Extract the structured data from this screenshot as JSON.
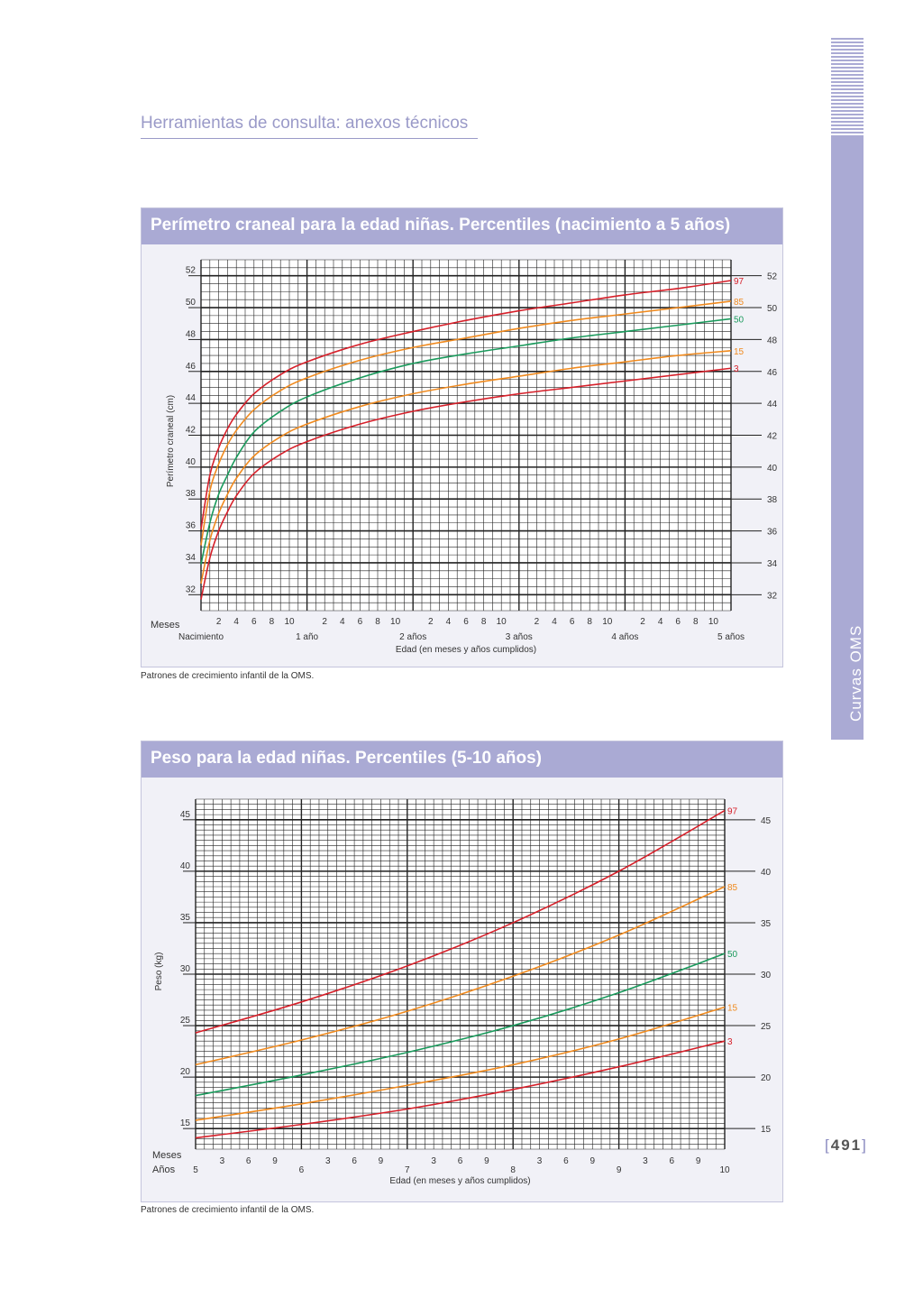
{
  "header": {
    "title": "Herramientas de consulta: anexos técnicos"
  },
  "side_tab": {
    "label": "Curvas OMS"
  },
  "page_number": {
    "value": "491",
    "open": "[",
    "close": "]"
  },
  "chart_data": [
    {
      "type": "line",
      "title": "Perímetro craneal para la edad niñas. Percentiles (nacimiento a 5 años)",
      "xlabel": "Edad (en meses y años cumplidos)",
      "ylabel": "Perímetro craneal (cm)",
      "x_unit": "months",
      "xlim": [
        0,
        60
      ],
      "ylim": [
        31,
        53
      ],
      "y_ticks": [
        32,
        34,
        36,
        38,
        40,
        42,
        44,
        46,
        48,
        50,
        52
      ],
      "month_row_label": "Meses",
      "month_ticks": [
        "2",
        "4",
        "6",
        "8",
        "10"
      ],
      "year_labels": [
        "Nacimiento",
        "1 año",
        "2 años",
        "3 años",
        "4 años",
        "5 años"
      ],
      "grid": true,
      "source": "Patrones de crecimiento infantil de la OMS.",
      "series": [
        {
          "name": "97",
          "color": "#d6202a",
          "x": [
            0,
            1,
            2,
            3,
            4,
            6,
            9,
            12,
            18,
            24,
            30,
            36,
            42,
            48,
            54,
            60
          ],
          "values": [
            36.1,
            39.5,
            41.2,
            42.4,
            43.3,
            44.6,
            45.8,
            46.6,
            47.7,
            48.5,
            49.2,
            49.8,
            50.3,
            50.8,
            51.2,
            51.7
          ]
        },
        {
          "name": "85",
          "color": "#f08a1e",
          "x": [
            0,
            1,
            2,
            3,
            4,
            6,
            9,
            12,
            18,
            24,
            30,
            36,
            42,
            48,
            54,
            60
          ],
          "values": [
            35.1,
            38.5,
            40.2,
            41.4,
            42.3,
            43.6,
            44.8,
            45.6,
            46.7,
            47.5,
            48.1,
            48.7,
            49.2,
            49.6,
            50.0,
            50.4
          ]
        },
        {
          "name": "50",
          "color": "#1a9a5c",
          "x": [
            0,
            1,
            2,
            3,
            4,
            6,
            9,
            12,
            18,
            24,
            30,
            36,
            42,
            48,
            54,
            60
          ],
          "values": [
            33.9,
            36.5,
            38.3,
            39.5,
            40.6,
            42.2,
            43.5,
            44.4,
            45.6,
            46.5,
            47.1,
            47.6,
            48.1,
            48.5,
            48.9,
            49.3
          ]
        },
        {
          "name": "15",
          "color": "#f08a1e",
          "x": [
            0,
            1,
            2,
            3,
            4,
            6,
            9,
            12,
            18,
            24,
            30,
            36,
            42,
            48,
            54,
            60
          ],
          "values": [
            32.7,
            35.4,
            37.1,
            38.3,
            39.3,
            40.7,
            41.9,
            42.7,
            43.8,
            44.6,
            45.2,
            45.7,
            46.2,
            46.6,
            47.0,
            47.3
          ]
        },
        {
          "name": "3",
          "color": "#d6202a",
          "x": [
            0,
            1,
            2,
            3,
            4,
            6,
            9,
            12,
            18,
            24,
            30,
            36,
            42,
            48,
            54,
            60
          ],
          "values": [
            31.7,
            34.3,
            36.0,
            37.2,
            38.2,
            39.6,
            40.8,
            41.6,
            42.7,
            43.5,
            44.1,
            44.6,
            45.0,
            45.4,
            45.8,
            46.2
          ]
        }
      ]
    },
    {
      "type": "line",
      "title": "Peso para la edad niñas. Percentiles (5-10 años)",
      "xlabel": "Edad (en meses y años cumplidos)",
      "ylabel": "Peso (kg)",
      "x_unit": "years",
      "xlim": [
        5,
        10
      ],
      "ylim": [
        13,
        47
      ],
      "y_ticks": [
        15,
        20,
        25,
        30,
        35,
        40,
        45
      ],
      "month_row_label": "Meses",
      "year_row_label": "Años",
      "month_ticks": [
        "3",
        "6",
        "9"
      ],
      "year_labels": [
        "5",
        "6",
        "7",
        "8",
        "9",
        "10"
      ],
      "grid": true,
      "source": "Patrones de crecimiento infantil de la OMS.",
      "series": [
        {
          "name": "97",
          "color": "#d6202a",
          "x": [
            5,
            6,
            7,
            8,
            9,
            10
          ],
          "values": [
            24.3,
            27.3,
            30.8,
            35.0,
            40.0,
            45.9
          ]
        },
        {
          "name": "85",
          "color": "#f08a1e",
          "x": [
            5,
            6,
            7,
            8,
            9,
            10
          ],
          "values": [
            21.2,
            23.6,
            26.4,
            29.8,
            33.8,
            38.5
          ]
        },
        {
          "name": "50",
          "color": "#1a9a5c",
          "x": [
            5,
            6,
            7,
            8,
            9,
            10
          ],
          "values": [
            18.2,
            20.2,
            22.4,
            25.0,
            28.2,
            32.0
          ]
        },
        {
          "name": "15",
          "color": "#f08a1e",
          "x": [
            5,
            6,
            7,
            8,
            9,
            10
          ],
          "values": [
            15.8,
            17.4,
            19.2,
            21.2,
            23.7,
            26.8
          ]
        },
        {
          "name": "3",
          "color": "#d6202a",
          "x": [
            5,
            6,
            7,
            8,
            9,
            10
          ],
          "values": [
            14.1,
            15.4,
            16.9,
            18.8,
            21.0,
            23.5
          ]
        }
      ]
    }
  ]
}
